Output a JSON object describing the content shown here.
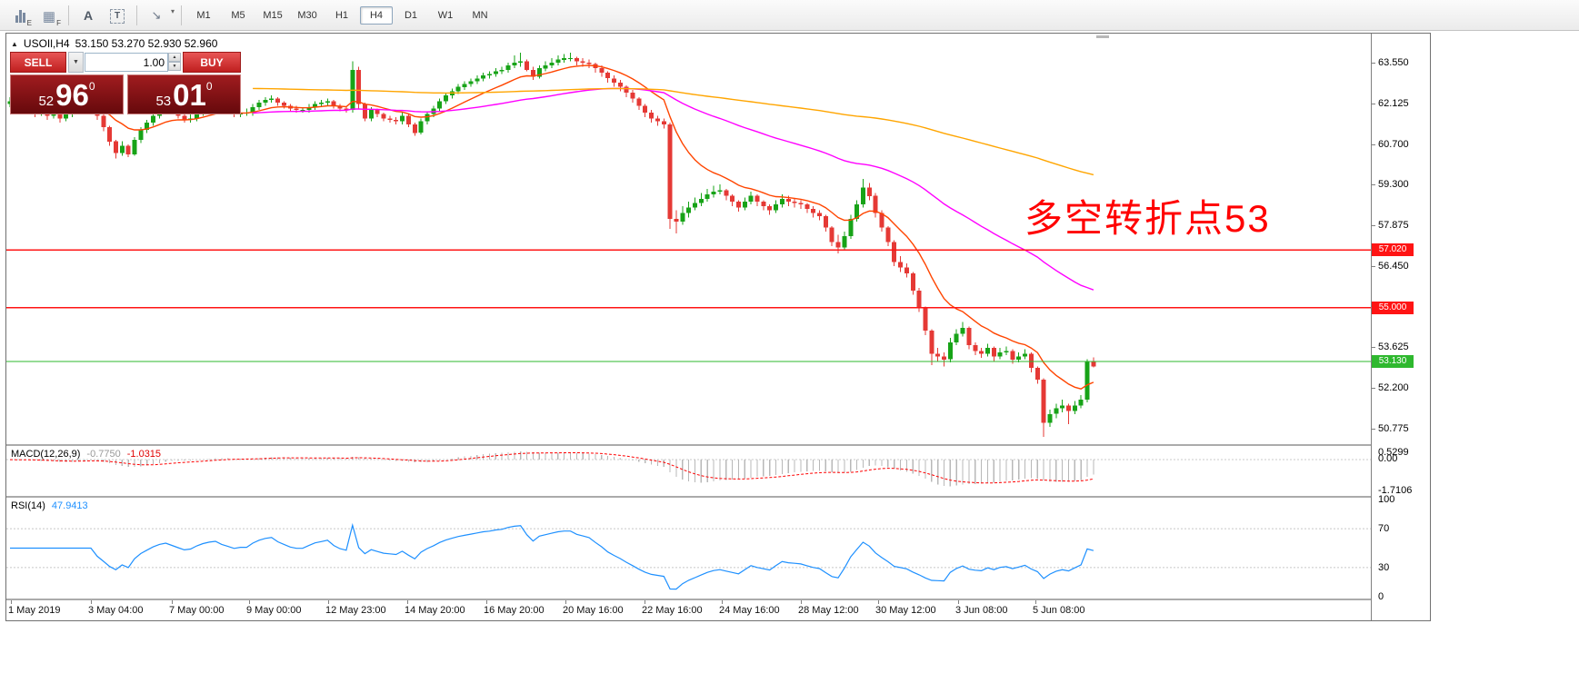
{
  "toolbar": {
    "tools": [
      {
        "label": "E"
      },
      {
        "label": "F"
      },
      {
        "label": "A"
      },
      {
        "label": "T"
      },
      {
        "glyph": "↘"
      }
    ],
    "caret_glyph": "▾",
    "timeframes": [
      "M1",
      "M5",
      "M15",
      "M30",
      "H1",
      "H4",
      "D1",
      "W1",
      "MN"
    ],
    "active_timeframe": "H4"
  },
  "chart": {
    "collapse_glyph": "▲",
    "title_symbol": "USOIl,H4",
    "ohlc_text": "53.150 53.270 52.930 52.960",
    "one_click": {
      "sell_label": "SELL",
      "buy_label": "BUY",
      "volume": "1.00",
      "caret": "▼",
      "spinner_up": "▲",
      "spinner_down": "▼",
      "sell_price": {
        "small": "52",
        "big": "96",
        "sup": "0"
      },
      "buy_price": {
        "small": "53",
        "big": "01",
        "sup": "0"
      }
    },
    "annotation": {
      "text": "多空转折点53",
      "color": "#ff0000"
    },
    "hlines": [
      {
        "price": 57.02,
        "label": "57.020",
        "color": "#ff1414"
      },
      {
        "price": 55.0,
        "label": "55.000",
        "color": "#ff1414"
      },
      {
        "price": 53.13,
        "label": "53.130",
        "color": "#2eb82e"
      }
    ],
    "price_axis": {
      "ticks": [
        {
          "price": 63.55,
          "label": "63.550"
        },
        {
          "price": 62.125,
          "label": "62.125"
        },
        {
          "price": 60.7,
          "label": "60.700"
        },
        {
          "price": 59.3,
          "label": "59.300"
        },
        {
          "price": 57.875,
          "label": "57.875"
        },
        {
          "price": 56.45,
          "label": "56.450"
        },
        {
          "price": 53.625,
          "label": "53.625"
        },
        {
          "price": 52.2,
          "label": "52.200"
        },
        {
          "price": 50.775,
          "label": "50.775"
        }
      ]
    },
    "time_axis": {
      "labels": [
        "1 May 2019",
        "3 May 04:00",
        "7 May 00:00",
        "9 May 00:00",
        "12 May 23:00",
        "14 May 20:00",
        "16 May 20:00",
        "20 May 16:00",
        "22 May 16:00",
        "24 May 16:00",
        "28 May 12:00",
        "30 May 12:00",
        "3 Jun 08:00",
        "5 Jun 08:00"
      ]
    }
  },
  "indicators": {
    "macd": {
      "label": "MACD(12,26,9)",
      "main_value": "-0.7750",
      "signal_value": "-1.0315",
      "fast": 12,
      "slow": 26,
      "signal": 9,
      "scale_top": "0.5299",
      "scale_zero": "0.00",
      "scale_bottom": "-1.7106",
      "main_color": "#b8b8b8",
      "signal_color": "#ff0000"
    },
    "rsi": {
      "label": "RSI(14)",
      "value": "47.9413",
      "period": 14,
      "levels": [
        70,
        30
      ],
      "scale": [
        "100",
        "70",
        "30",
        "0"
      ],
      "color": "#1e90ff"
    }
  },
  "chart_data": {
    "type": "candlestick",
    "symbol": "USOIl",
    "timeframe": "H4",
    "up_color": "#17a317",
    "down_color": "#e53935",
    "moving_averages": [
      {
        "period": 13,
        "color": "#ff4500",
        "seed": null,
        "start": 8
      },
      {
        "period": 68,
        "color": "#ff00ff",
        "seed": 62.0,
        "start": 39
      },
      {
        "period": 250,
        "color": "#ffa500",
        "seed": 63.0,
        "start": 39
      }
    ],
    "candles": [
      [
        62.1,
        62.35,
        62.0,
        62.2
      ],
      [
        62.2,
        62.3,
        61.9,
        62.05
      ],
      [
        62.05,
        62.4,
        61.95,
        62.25
      ],
      [
        62.25,
        62.3,
        61.8,
        61.95
      ],
      [
        61.95,
        62.05,
        61.65,
        61.8
      ],
      [
        61.8,
        62.1,
        61.7,
        62.0
      ],
      [
        62.0,
        62.05,
        61.55,
        61.7
      ],
      [
        61.7,
        62.0,
        61.6,
        61.85
      ],
      [
        61.85,
        61.9,
        61.45,
        61.6
      ],
      [
        61.6,
        61.9,
        61.5,
        61.75
      ],
      [
        61.75,
        62.1,
        61.65,
        62.0
      ],
      [
        62.0,
        62.3,
        61.9,
        62.2
      ],
      [
        62.2,
        62.45,
        62.1,
        62.3
      ],
      [
        62.3,
        62.35,
        61.95,
        62.1
      ],
      [
        62.1,
        62.15,
        61.55,
        61.7
      ],
      [
        61.7,
        61.75,
        61.15,
        61.3
      ],
      [
        61.3,
        61.35,
        60.65,
        60.8
      ],
      [
        60.8,
        60.85,
        60.2,
        60.4
      ],
      [
        60.4,
        60.8,
        60.3,
        60.65
      ],
      [
        60.65,
        60.7,
        60.25,
        60.35
      ],
      [
        60.35,
        60.95,
        60.3,
        60.85
      ],
      [
        60.85,
        61.3,
        60.75,
        61.2
      ],
      [
        61.2,
        61.55,
        61.1,
        61.45
      ],
      [
        61.45,
        61.8,
        61.35,
        61.7
      ],
      [
        61.7,
        62.0,
        61.6,
        61.9
      ],
      [
        61.9,
        62.1,
        61.8,
        62.0
      ],
      [
        62.0,
        62.05,
        61.75,
        61.85
      ],
      [
        61.85,
        61.9,
        61.6,
        61.7
      ],
      [
        61.7,
        61.75,
        61.45,
        61.55
      ],
      [
        61.55,
        61.75,
        61.45,
        61.6
      ],
      [
        61.6,
        61.9,
        61.5,
        61.8
      ],
      [
        61.8,
        62.05,
        61.7,
        61.95
      ],
      [
        61.95,
        62.15,
        61.85,
        62.05
      ],
      [
        62.05,
        62.2,
        61.95,
        62.1
      ],
      [
        62.1,
        62.15,
        61.85,
        61.95
      ],
      [
        61.95,
        62.0,
        61.75,
        61.85
      ],
      [
        61.85,
        61.9,
        61.65,
        61.75
      ],
      [
        61.75,
        61.95,
        61.65,
        61.8
      ],
      [
        61.8,
        61.95,
        61.7,
        61.8
      ],
      [
        61.8,
        62.1,
        61.7,
        62.0
      ],
      [
        62.0,
        62.25,
        61.9,
        62.15
      ],
      [
        62.15,
        62.35,
        62.05,
        62.25
      ],
      [
        62.25,
        62.4,
        62.15,
        62.3
      ],
      [
        62.3,
        62.35,
        62.05,
        62.15
      ],
      [
        62.15,
        62.2,
        61.95,
        62.05
      ],
      [
        62.05,
        62.1,
        61.85,
        61.95
      ],
      [
        61.95,
        62.05,
        61.8,
        61.9
      ],
      [
        61.9,
        62.0,
        61.8,
        61.9
      ],
      [
        61.9,
        62.1,
        61.8,
        62.0
      ],
      [
        62.0,
        62.2,
        61.9,
        62.1
      ],
      [
        62.1,
        62.25,
        62.0,
        62.15
      ],
      [
        62.15,
        62.3,
        62.05,
        62.2
      ],
      [
        62.2,
        62.25,
        61.95,
        62.05
      ],
      [
        62.05,
        62.1,
        61.85,
        61.95
      ],
      [
        61.95,
        62.0,
        61.8,
        61.9
      ],
      [
        61.9,
        63.6,
        61.8,
        63.3
      ],
      [
        63.3,
        63.4,
        61.95,
        62.1
      ],
      [
        62.1,
        62.15,
        61.5,
        61.6
      ],
      [
        61.6,
        62.0,
        61.5,
        61.9
      ],
      [
        61.9,
        61.95,
        61.65,
        61.75
      ],
      [
        61.75,
        61.8,
        61.5,
        61.6
      ],
      [
        61.6,
        61.7,
        61.45,
        61.55
      ],
      [
        61.55,
        61.65,
        61.4,
        61.5
      ],
      [
        61.5,
        61.8,
        61.4,
        61.7
      ],
      [
        61.7,
        61.75,
        61.3,
        61.4
      ],
      [
        61.4,
        61.45,
        61.0,
        61.1
      ],
      [
        61.1,
        61.6,
        61.05,
        61.5
      ],
      [
        61.5,
        61.85,
        61.4,
        61.75
      ],
      [
        61.75,
        62.05,
        61.65,
        61.95
      ],
      [
        61.95,
        62.3,
        61.85,
        62.2
      ],
      [
        62.2,
        62.5,
        62.1,
        62.4
      ],
      [
        62.4,
        62.65,
        62.3,
        62.55
      ],
      [
        62.55,
        62.8,
        62.45,
        62.7
      ],
      [
        62.7,
        62.9,
        62.6,
        62.8
      ],
      [
        62.8,
        63.0,
        62.7,
        62.9
      ],
      [
        62.9,
        63.1,
        62.8,
        63.0
      ],
      [
        63.0,
        63.2,
        62.9,
        63.1
      ],
      [
        63.1,
        63.25,
        63.0,
        63.15
      ],
      [
        63.15,
        63.35,
        63.05,
        63.25
      ],
      [
        63.25,
        63.4,
        63.15,
        63.3
      ],
      [
        63.3,
        63.55,
        63.2,
        63.45
      ],
      [
        63.45,
        63.8,
        63.35,
        63.55
      ],
      [
        63.55,
        63.9,
        63.4,
        63.6
      ],
      [
        63.6,
        63.65,
        63.25,
        63.3
      ],
      [
        63.3,
        63.4,
        62.95,
        63.05
      ],
      [
        63.05,
        63.45,
        63.0,
        63.35
      ],
      [
        63.35,
        63.6,
        63.25,
        63.45
      ],
      [
        63.45,
        63.7,
        63.35,
        63.55
      ],
      [
        63.55,
        63.8,
        63.45,
        63.65
      ],
      [
        63.65,
        63.85,
        63.55,
        63.7
      ],
      [
        63.7,
        63.9,
        63.6,
        63.7
      ],
      [
        63.7,
        63.75,
        63.45,
        63.6
      ],
      [
        63.6,
        63.7,
        63.4,
        63.55
      ],
      [
        63.55,
        63.65,
        63.35,
        63.5
      ],
      [
        63.5,
        63.55,
        63.2,
        63.35
      ],
      [
        63.35,
        63.45,
        63.05,
        63.2
      ],
      [
        63.2,
        63.25,
        62.85,
        63.0
      ],
      [
        63.0,
        63.1,
        62.7,
        62.85
      ],
      [
        62.85,
        62.95,
        62.55,
        62.7
      ],
      [
        62.7,
        62.75,
        62.35,
        62.5
      ],
      [
        62.5,
        62.6,
        62.15,
        62.3
      ],
      [
        62.3,
        62.35,
        61.9,
        62.05
      ],
      [
        62.05,
        62.1,
        61.65,
        61.8
      ],
      [
        61.8,
        61.9,
        61.45,
        61.6
      ],
      [
        61.6,
        61.7,
        61.35,
        61.5
      ],
      [
        61.5,
        61.6,
        61.25,
        61.4
      ],
      [
        61.4,
        61.45,
        57.75,
        58.1
      ],
      [
        58.1,
        58.4,
        57.6,
        58.0
      ],
      [
        58.0,
        58.55,
        57.9,
        58.3
      ],
      [
        58.3,
        58.7,
        58.15,
        58.5
      ],
      [
        58.5,
        58.85,
        58.4,
        58.65
      ],
      [
        58.65,
        59.0,
        58.55,
        58.8
      ],
      [
        58.8,
        59.15,
        58.7,
        58.95
      ],
      [
        58.95,
        59.25,
        58.85,
        59.05
      ],
      [
        59.05,
        59.3,
        58.95,
        59.1
      ],
      [
        59.1,
        59.15,
        58.75,
        58.9
      ],
      [
        58.9,
        58.95,
        58.55,
        58.7
      ],
      [
        58.7,
        58.75,
        58.35,
        58.5
      ],
      [
        58.5,
        58.85,
        58.4,
        58.7
      ],
      [
        58.7,
        59.05,
        58.6,
        58.9
      ],
      [
        58.9,
        58.95,
        58.55,
        58.7
      ],
      [
        58.7,
        58.75,
        58.4,
        58.55
      ],
      [
        58.55,
        58.6,
        58.25,
        58.4
      ],
      [
        58.4,
        58.75,
        58.3,
        58.6
      ],
      [
        58.6,
        58.95,
        58.5,
        58.8
      ],
      [
        58.8,
        58.9,
        58.55,
        58.7
      ],
      [
        58.7,
        58.8,
        58.5,
        58.65
      ],
      [
        58.65,
        58.75,
        58.45,
        58.6
      ],
      [
        58.6,
        58.65,
        58.3,
        58.45
      ],
      [
        58.45,
        58.55,
        58.15,
        58.3
      ],
      [
        58.3,
        58.4,
        58.05,
        58.2
      ],
      [
        58.2,
        58.25,
        57.65,
        57.8
      ],
      [
        57.8,
        57.85,
        57.15,
        57.3
      ],
      [
        57.3,
        57.55,
        56.9,
        57.1
      ],
      [
        57.1,
        57.65,
        57.0,
        57.5
      ],
      [
        57.5,
        58.25,
        57.4,
        58.1
      ],
      [
        58.1,
        58.75,
        58.0,
        58.6
      ],
      [
        58.6,
        59.5,
        58.5,
        59.2
      ],
      [
        59.2,
        59.35,
        58.75,
        58.9
      ],
      [
        58.9,
        59.0,
        58.15,
        58.3
      ],
      [
        58.3,
        58.4,
        57.65,
        57.8
      ],
      [
        57.8,
        57.85,
        57.15,
        57.3
      ],
      [
        57.3,
        57.35,
        56.45,
        56.6
      ],
      [
        56.6,
        56.8,
        56.25,
        56.4
      ],
      [
        56.4,
        56.55,
        56.05,
        56.2
      ],
      [
        56.2,
        56.25,
        55.45,
        55.6
      ],
      [
        55.6,
        55.7,
        54.85,
        55.0
      ],
      [
        55.0,
        55.05,
        54.05,
        54.2
      ],
      [
        54.2,
        54.25,
        53.0,
        53.4
      ],
      [
        53.4,
        53.6,
        53.15,
        53.3
      ],
      [
        53.3,
        53.45,
        52.95,
        53.2
      ],
      [
        53.2,
        53.95,
        53.1,
        53.8
      ],
      [
        53.8,
        54.25,
        53.7,
        54.1
      ],
      [
        54.1,
        54.5,
        54.0,
        54.3
      ],
      [
        54.3,
        54.35,
        53.55,
        53.7
      ],
      [
        53.7,
        53.8,
        53.35,
        53.5
      ],
      [
        53.5,
        53.6,
        53.25,
        53.4
      ],
      [
        53.4,
        53.75,
        53.3,
        53.6
      ],
      [
        53.6,
        53.65,
        53.15,
        53.3
      ],
      [
        53.3,
        53.6,
        53.2,
        53.45
      ],
      [
        53.45,
        53.65,
        53.35,
        53.5
      ],
      [
        53.5,
        53.55,
        53.05,
        53.2
      ],
      [
        53.2,
        53.45,
        53.1,
        53.3
      ],
      [
        53.3,
        53.55,
        53.2,
        53.4
      ],
      [
        53.4,
        53.45,
        52.75,
        52.9
      ],
      [
        52.9,
        52.95,
        52.35,
        52.5
      ],
      [
        52.5,
        52.55,
        50.5,
        51.0
      ],
      [
        51.0,
        51.45,
        50.85,
        51.3
      ],
      [
        51.3,
        51.65,
        51.15,
        51.5
      ],
      [
        51.5,
        51.8,
        51.35,
        51.6
      ],
      [
        51.6,
        51.65,
        50.95,
        51.4
      ],
      [
        51.4,
        51.75,
        51.3,
        51.6
      ],
      [
        51.6,
        51.95,
        51.5,
        51.8
      ],
      [
        51.8,
        53.2,
        51.7,
        53.15
      ],
      [
        53.15,
        53.27,
        52.93,
        52.96
      ]
    ]
  }
}
